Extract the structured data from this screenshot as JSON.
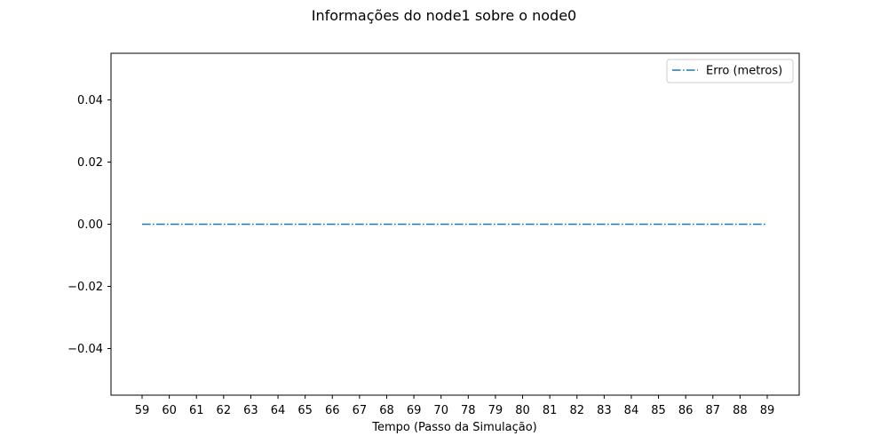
{
  "chart_data": {
    "type": "line",
    "title": "Informações do node1 sobre o node0",
    "xlabel": "Tempo (Passo da Simulação)",
    "ylabel": "",
    "categories": [
      "59",
      "60",
      "61",
      "62",
      "63",
      "64",
      "65",
      "66",
      "67",
      "68",
      "69",
      "70",
      "78",
      "79",
      "80",
      "81",
      "82",
      "83",
      "84",
      "85",
      "86",
      "87",
      "88",
      "89"
    ],
    "series": [
      {
        "name": "Erro (metros)",
        "values": [
          0,
          0,
          0,
          0,
          0,
          0,
          0,
          0,
          0,
          0,
          0,
          0,
          0,
          0,
          0,
          0,
          0,
          0,
          0,
          0,
          0,
          0,
          0,
          0
        ],
        "color": "#1f77b4",
        "line_style": "dashdot"
      }
    ],
    "ylim": [
      -0.055,
      0.055
    ],
    "yticks": [
      "0.04",
      "0.02",
      "0.00",
      "−0.02",
      "−0.04"
    ],
    "ytick_values": [
      0.04,
      0.02,
      0.0,
      -0.02,
      -0.04
    ],
    "grid": false,
    "legend_position": "upper right"
  }
}
